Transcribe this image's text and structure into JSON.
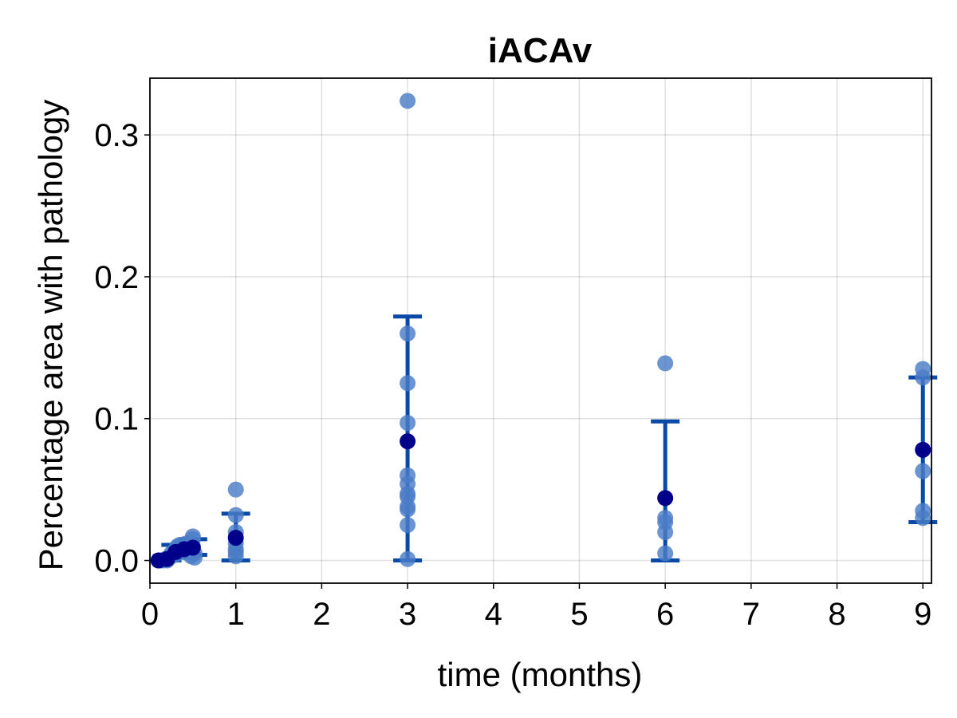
{
  "chart_data": {
    "type": "scatter",
    "title": "iACAv",
    "xlabel": "time (months)",
    "ylabel": "Percentage area with pathology",
    "xlim": [
      0,
      9.1
    ],
    "ylim": [
      -0.016,
      0.34
    ],
    "xticks": [
      0,
      1,
      2,
      3,
      4,
      5,
      6,
      7,
      8,
      9
    ],
    "xtick_labels": [
      "0",
      "1",
      "2",
      "3",
      "4",
      "5",
      "6",
      "7",
      "8",
      "9"
    ],
    "yticks": [
      0.0,
      0.1,
      0.2,
      0.3
    ],
    "ytick_labels": [
      "0.0",
      "0.1",
      "0.2",
      "0.3"
    ],
    "grid": true,
    "legend": "none",
    "colors": {
      "points": "#4a7cc7",
      "mean": "#00008b",
      "errorbar": "#0a4aa6"
    },
    "series": [
      {
        "points": [
          {
            "x": 0.1,
            "y": 0.0
          },
          {
            "x": 0.12,
            "y": 0.0
          },
          {
            "x": 0.15,
            "y": 0.0
          },
          {
            "x": 0.18,
            "y": 0.001
          },
          {
            "x": 0.2,
            "y": 0.0
          },
          {
            "x": 0.22,
            "y": 0.002
          },
          {
            "x": 0.25,
            "y": 0.003
          },
          {
            "x": 0.25,
            "y": 0.005
          },
          {
            "x": 0.28,
            "y": 0.006
          },
          {
            "x": 0.3,
            "y": 0.004
          },
          {
            "x": 0.3,
            "y": 0.008
          },
          {
            "x": 0.32,
            "y": 0.01
          },
          {
            "x": 0.35,
            "y": 0.011
          },
          {
            "x": 0.35,
            "y": 0.007
          },
          {
            "x": 0.38,
            "y": 0.009
          },
          {
            "x": 0.4,
            "y": 0.006
          },
          {
            "x": 0.42,
            "y": 0.012
          },
          {
            "x": 0.45,
            "y": 0.008
          },
          {
            "x": 0.48,
            "y": 0.003
          },
          {
            "x": 0.5,
            "y": 0.017
          },
          {
            "x": 0.5,
            "y": 0.015
          },
          {
            "x": 0.5,
            "y": 0.01
          },
          {
            "x": 0.52,
            "y": 0.005
          },
          {
            "x": 0.52,
            "y": 0.002
          },
          {
            "x": 1,
            "y": 0.05
          },
          {
            "x": 1,
            "y": 0.032
          },
          {
            "x": 1,
            "y": 0.02
          },
          {
            "x": 1,
            "y": 0.012
          },
          {
            "x": 1,
            "y": 0.008
          },
          {
            "x": 1,
            "y": 0.006
          },
          {
            "x": 1,
            "y": 0.003
          },
          {
            "x": 3,
            "y": 0.324
          },
          {
            "x": 3,
            "y": 0.16
          },
          {
            "x": 3,
            "y": 0.125
          },
          {
            "x": 3,
            "y": 0.097
          },
          {
            "x": 3,
            "y": 0.06
          },
          {
            "x": 3,
            "y": 0.054
          },
          {
            "x": 3,
            "y": 0.047
          },
          {
            "x": 3,
            "y": 0.045
          },
          {
            "x": 3,
            "y": 0.038
          },
          {
            "x": 3,
            "y": 0.036
          },
          {
            "x": 3,
            "y": 0.025
          },
          {
            "x": 3,
            "y": 0.001
          },
          {
            "x": 6,
            "y": 0.139
          },
          {
            "x": 6,
            "y": 0.03
          },
          {
            "x": 6,
            "y": 0.027
          },
          {
            "x": 6,
            "y": 0.02
          },
          {
            "x": 6,
            "y": 0.005
          },
          {
            "x": 9,
            "y": 0.135
          },
          {
            "x": 9,
            "y": 0.129
          },
          {
            "x": 9,
            "y": 0.063
          },
          {
            "x": 9,
            "y": 0.035
          },
          {
            "x": 9,
            "y": 0.03
          }
        ],
        "means": [
          {
            "x": 0.1,
            "y": 0.0
          },
          {
            "x": 0.2,
            "y": 0.001
          },
          {
            "x": 0.3,
            "y": 0.006
          },
          {
            "x": 0.4,
            "y": 0.008
          },
          {
            "x": 0.5,
            "y": 0.009
          },
          {
            "x": 1,
            "y": 0.016
          },
          {
            "x": 3,
            "y": 0.084
          },
          {
            "x": 6,
            "y": 0.044
          },
          {
            "x": 9,
            "y": 0.078
          }
        ],
        "errorbars": [
          {
            "x": 0.2,
            "low": 0.0,
            "high": 0.003
          },
          {
            "x": 0.3,
            "low": 0.002,
            "high": 0.011
          },
          {
            "x": 0.5,
            "low": 0.004,
            "high": 0.015
          },
          {
            "x": 1,
            "low": 0.0,
            "high": 0.033
          },
          {
            "x": 3,
            "low": 0.0,
            "high": 0.172
          },
          {
            "x": 6,
            "low": 0.0,
            "high": 0.098
          },
          {
            "x": 9,
            "low": 0.027,
            "high": 0.129
          }
        ]
      }
    ]
  }
}
